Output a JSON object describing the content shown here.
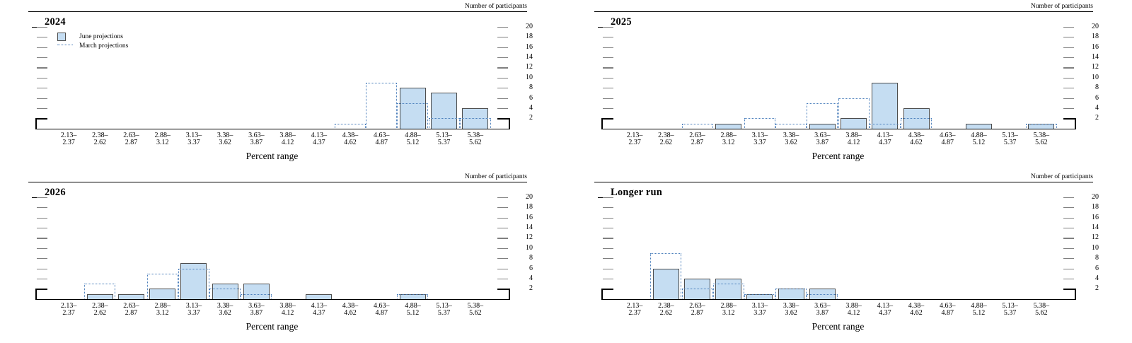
{
  "axes": {
    "y_label": "Number of participants",
    "x_label": "Percent range",
    "y_ticks": [
      2,
      4,
      6,
      8,
      10,
      12,
      14,
      16,
      18,
      20
    ]
  },
  "legend": {
    "june": "June projections",
    "march": "March projections"
  },
  "colors": {
    "bar_fill": "#c5ddf2",
    "bar_border": "#4d4d4d",
    "march_dotted": "#4a7ebb",
    "axis_dash": "#7f7f7f",
    "text": "#000000"
  },
  "chart_data": [
    {
      "type": "bar",
      "title": "2024",
      "categories": [
        "2.13–2.37",
        "2.38–2.62",
        "2.63–2.87",
        "2.88–3.12",
        "3.13–3.37",
        "3.38–3.62",
        "3.63–3.87",
        "3.88–4.12",
        "4.13–4.37",
        "4.38–4.62",
        "4.63–4.87",
        "4.88–5.12",
        "5.13–5.37",
        "5.38–5.62"
      ],
      "series": [
        {
          "name": "June projections",
          "values": [
            0,
            0,
            0,
            0,
            0,
            0,
            0,
            0,
            0,
            0,
            0,
            8,
            7,
            4
          ]
        },
        {
          "name": "March projections",
          "values": [
            0,
            0,
            0,
            0,
            0,
            0,
            0,
            0,
            0,
            1,
            9,
            5,
            2,
            2
          ]
        }
      ],
      "xlabel": "Percent range",
      "ylabel": "Number of participants",
      "ylim": [
        0,
        21
      ],
      "legend_position": "top-left",
      "grid": false
    },
    {
      "type": "bar",
      "title": "2025",
      "categories": [
        "2.13–2.37",
        "2.38–2.62",
        "2.63–2.87",
        "2.88–3.12",
        "3.13–3.37",
        "3.38–3.62",
        "3.63–3.87",
        "3.88–4.12",
        "4.13–4.37",
        "4.38–4.62",
        "4.63–4.87",
        "4.88–5.12",
        "5.13–5.37",
        "5.38–5.62"
      ],
      "series": [
        {
          "name": "June projections",
          "values": [
            0,
            0,
            0,
            1,
            0,
            0,
            1,
            2,
            9,
            4,
            0,
            1,
            0,
            1
          ]
        },
        {
          "name": "March projections",
          "values": [
            0,
            0,
            1,
            0,
            2,
            1,
            5,
            6,
            1,
            2,
            0,
            0,
            0,
            1
          ]
        }
      ],
      "xlabel": "Percent range",
      "ylabel": "Number of participants",
      "ylim": [
        0,
        21
      ],
      "legend_position": "none",
      "grid": false
    },
    {
      "type": "bar",
      "title": "2026",
      "categories": [
        "2.13–2.37",
        "2.38–2.62",
        "2.63–2.87",
        "2.88–3.12",
        "3.13–3.37",
        "3.38–3.62",
        "3.63–3.87",
        "3.88–4.12",
        "4.13–4.37",
        "4.38–4.62",
        "4.63–4.87",
        "4.88–5.12",
        "5.13–5.37",
        "5.38–5.62"
      ],
      "series": [
        {
          "name": "June projections",
          "values": [
            0,
            1,
            1,
            2,
            7,
            3,
            3,
            0,
            1,
            0,
            0,
            1,
            0,
            0
          ]
        },
        {
          "name": "March projections",
          "values": [
            0,
            3,
            0,
            5,
            6,
            2,
            1,
            0,
            0,
            0,
            0,
            1,
            0,
            0
          ]
        }
      ],
      "xlabel": "Percent range",
      "ylabel": "Number of participants",
      "ylim": [
        0,
        21
      ],
      "legend_position": "none",
      "grid": false
    },
    {
      "type": "bar",
      "title": "Longer run",
      "categories": [
        "2.13–2.37",
        "2.38–2.62",
        "2.63–2.87",
        "2.88–3.12",
        "3.13–3.37",
        "3.38–3.62",
        "3.63–3.87",
        "3.88–4.12",
        "4.13–4.37",
        "4.38–4.62",
        "4.63–4.87",
        "4.88–5.12",
        "5.13–5.37",
        "5.38–5.62"
      ],
      "series": [
        {
          "name": "June projections",
          "values": [
            0,
            6,
            4,
            4,
            1,
            2,
            2,
            0,
            0,
            0,
            0,
            0,
            0,
            0
          ]
        },
        {
          "name": "March projections",
          "values": [
            0,
            9,
            2,
            3,
            1,
            2,
            1,
            0,
            0,
            0,
            0,
            0,
            0,
            0
          ]
        }
      ],
      "xlabel": "Percent range",
      "ylabel": "Number of participants",
      "ylim": [
        0,
        21
      ],
      "legend_position": "none",
      "grid": false
    }
  ]
}
